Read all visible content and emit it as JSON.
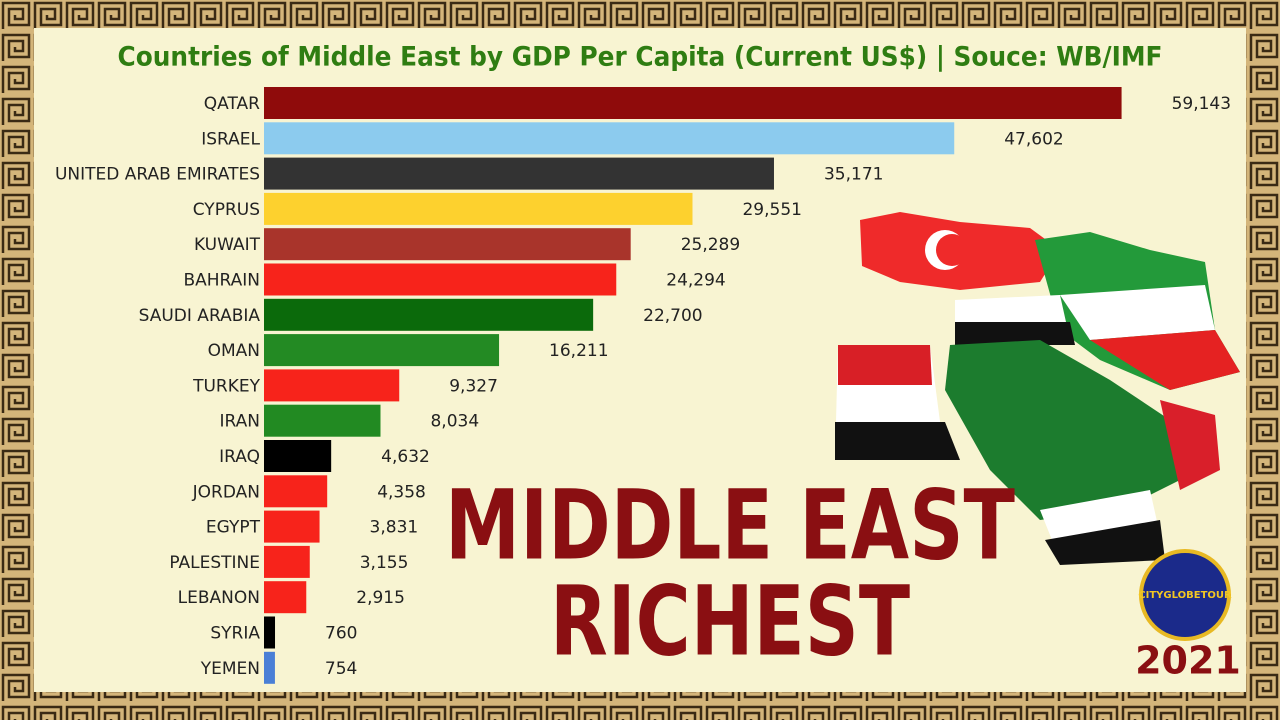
{
  "chart_data": {
    "type": "bar",
    "title": "Countries of Middle East by GDP Per Capita (Current US$) | Souce: WB/IMF",
    "orientation": "horizontal",
    "categories": [
      "QATAR",
      "ISRAEL",
      "UNITED ARAB EMIRATES",
      "CYPRUS",
      "KUWAIT",
      "BAHRAIN",
      "SAUDI ARABIA",
      "OMAN",
      "TURKEY",
      "IRAN",
      "IRAQ",
      "JORDAN",
      "EGYPT",
      "PALESTINE",
      "LEBANON",
      "SYRIA",
      "YEMEN"
    ],
    "values": [
      59143,
      47602,
      35171,
      29551,
      25289,
      24294,
      22700,
      16211,
      9327,
      8034,
      4632,
      4358,
      3831,
      3155,
      2915,
      760,
      754
    ],
    "value_labels": [
      "59,143",
      "47,602",
      "35,171",
      "29,551",
      "25,289",
      "24,294",
      "22,700",
      "16,211",
      "9,327",
      "8,034",
      "4,632",
      "4,358",
      "3,831",
      "3,155",
      "2,915",
      "760",
      "754"
    ],
    "colors": [
      "#8f0b0b",
      "#8ccbee",
      "#333333",
      "#fdd12e",
      "#a9342b",
      "#f7231b",
      "#0b6a0b",
      "#238a23",
      "#f7231b",
      "#228a22",
      "#000000",
      "#f7231b",
      "#f7231b",
      "#f7231b",
      "#f7231b",
      "#000000",
      "#4a7fd6"
    ],
    "xlim": [
      0,
      60000
    ],
    "headline": [
      "MIDDLE EAST",
      "RICHEST"
    ],
    "year": "2021",
    "logo_text": "CITYGLOBETOUR"
  }
}
